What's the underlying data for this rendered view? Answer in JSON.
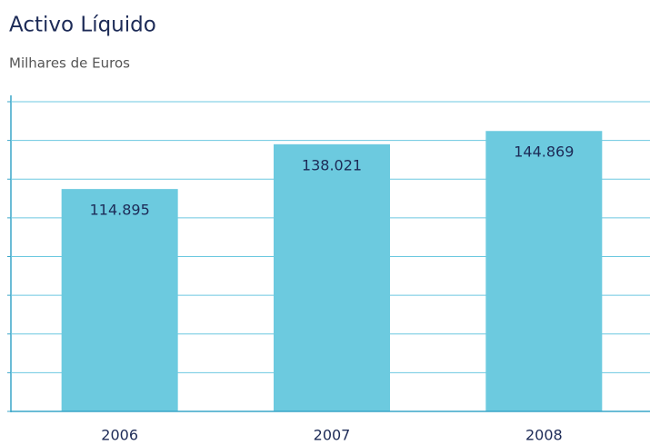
{
  "chart_data": {
    "type": "bar",
    "title": "Activo Líquido",
    "subtitle": "Milhares de Euros",
    "categories": [
      "2006",
      "2007",
      "2008"
    ],
    "values": [
      114895,
      138021,
      144869
    ],
    "value_labels": [
      "114.895",
      "138.021",
      "144.869"
    ],
    "color": "#6ccadf",
    "ylim": [
      0,
      160000
    ],
    "yticks": [
      0,
      20000,
      40000,
      60000,
      80000,
      100000,
      120000,
      140000,
      160000
    ],
    "grid": true
  }
}
